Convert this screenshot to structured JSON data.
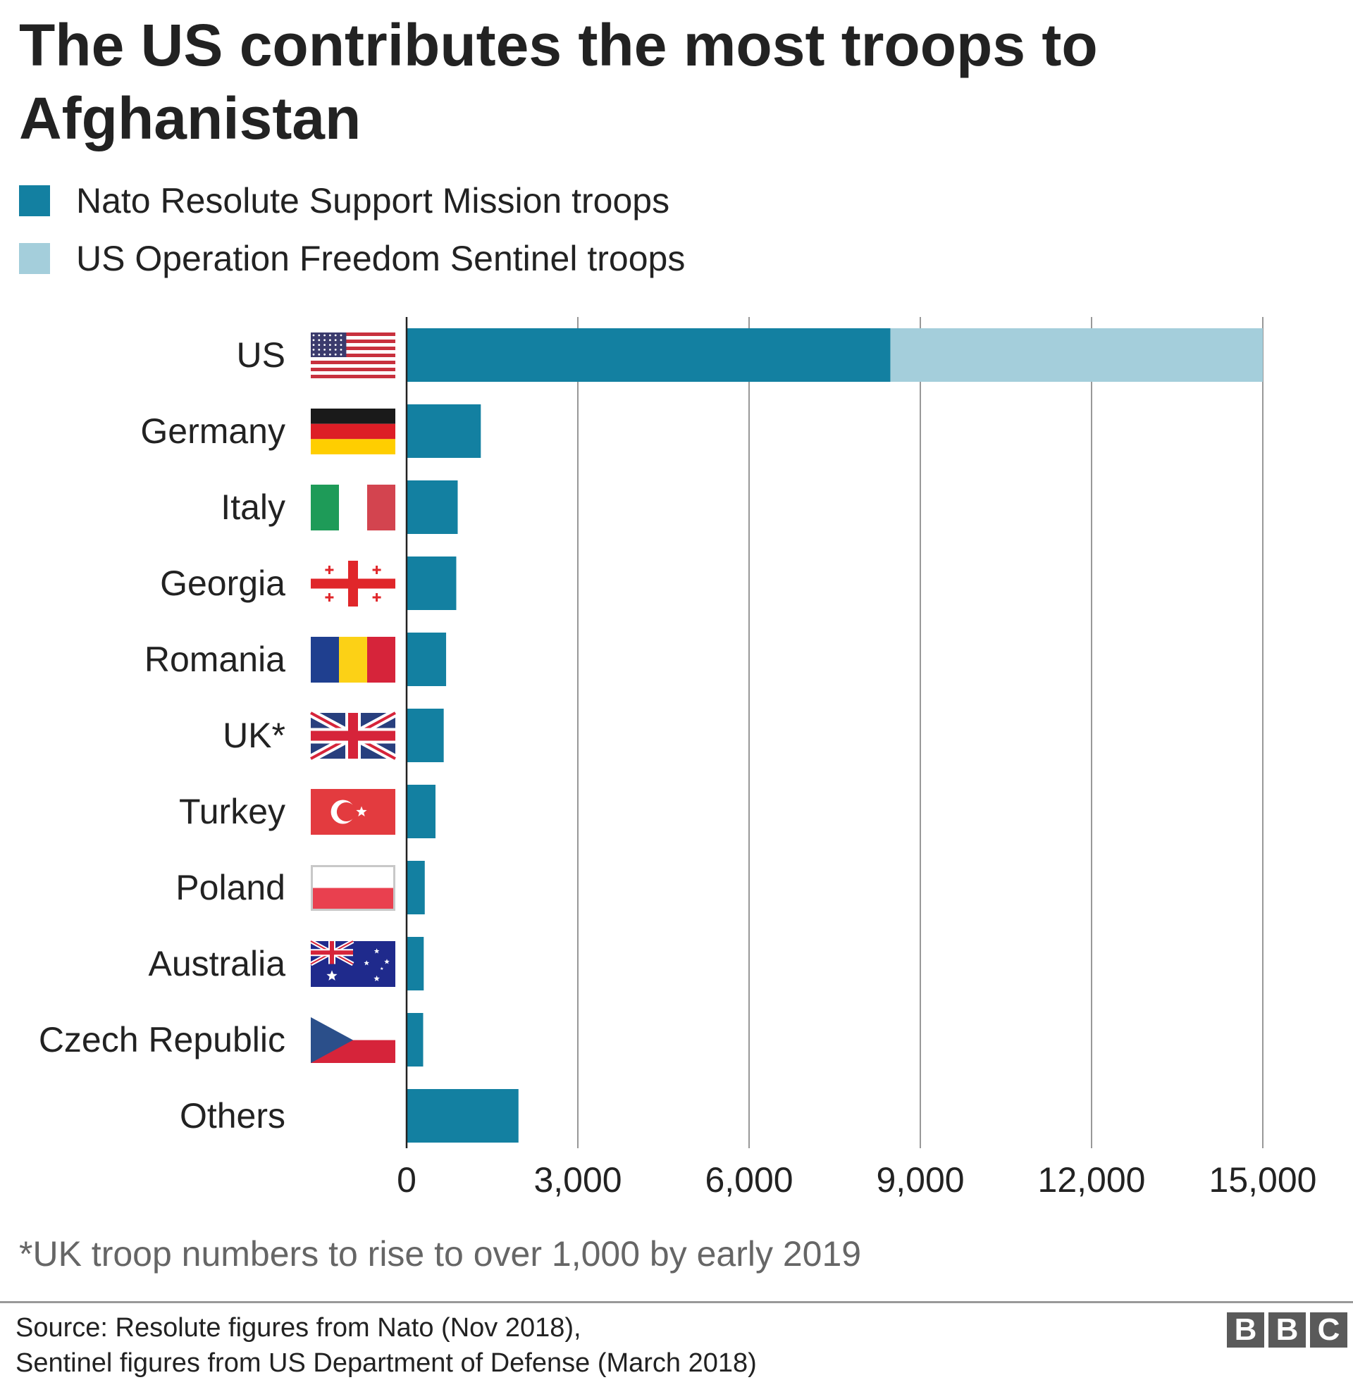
{
  "title": "The US contributes the most troops to Afghanistan",
  "legend": [
    {
      "label": "Nato Resolute Support Mission troops",
      "color": "#1380A1"
    },
    {
      "label": "US Operation Freedom Sentinel troops",
      "color": "#A4CEDB"
    }
  ],
  "chart_data": {
    "type": "bar",
    "orientation": "horizontal",
    "stacked": true,
    "categories": [
      "US",
      "Germany",
      "Italy",
      "Georgia",
      "Romania",
      "UK*",
      "Turkey",
      "Poland",
      "Australia",
      "Czech Republic",
      "Others"
    ],
    "flags": [
      "us-flag-icon",
      "germany-flag-icon",
      "italy-flag-icon",
      "georgia-flag-icon",
      "romania-flag-icon",
      "uk-flag-icon",
      "turkey-flag-icon",
      "poland-flag-icon",
      "australia-flag-icon",
      "czech-flag-icon",
      ""
    ],
    "series": [
      {
        "name": "Nato Resolute Support Mission troops",
        "color": "#1380A1",
        "values": [
          8475,
          1300,
          895,
          870,
          692,
          650,
          506,
          318,
          300,
          290,
          1960
        ]
      },
      {
        "name": "US Operation Freedom Sentinel troops",
        "color": "#A4CEDB",
        "values": [
          6525,
          0,
          0,
          0,
          0,
          0,
          0,
          0,
          0,
          0,
          0
        ]
      }
    ],
    "xlim": [
      0,
      15000
    ],
    "xticks": [
      0,
      3000,
      6000,
      9000,
      12000,
      15000
    ],
    "xtick_labels": [
      "0",
      "3,000",
      "6,000",
      "9,000",
      "12,000",
      "15,000"
    ],
    "grid": true,
    "legend_position": "top-left"
  },
  "footnote": "*UK troop numbers to rise to over 1,000 by early 2019",
  "source": {
    "line1": "Source: Resolute figures from Nato (Nov 2018),",
    "line2": "Sentinel figures from US Department of Defense (March 2018)"
  },
  "logo": {
    "letters": [
      "B",
      "B",
      "C"
    ]
  }
}
